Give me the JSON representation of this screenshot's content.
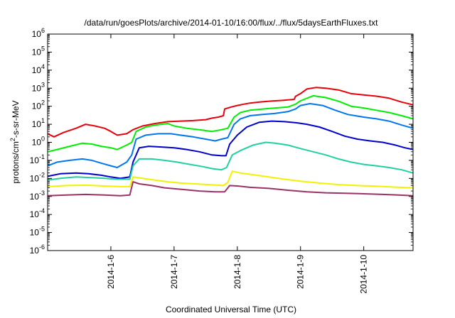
{
  "chart_data": {
    "type": "line",
    "title": "/data/run/goesPlots/archive/2014-01-10/16:00/flux/../flux/5daysEarthFluxes.txt",
    "xlabel": "Coordinated Universal Time (UTC)",
    "ylabel": {
      "pre": "protons/cm",
      "sup": "2",
      "post": "-s-sr-MeV"
    },
    "x_unit": "days since 2014-01-05 00:00 UTC",
    "xlim": [
      0.0,
      5.78
    ],
    "ylim_log10": [
      -6,
      6
    ],
    "y_scale": "log",
    "x_ticks": [
      {
        "x": 1,
        "label": "2014-1-6"
      },
      {
        "x": 2,
        "label": "2014-1-7"
      },
      {
        "x": 3,
        "label": "2014-1-8"
      },
      {
        "x": 4,
        "label": "2014-1-9"
      },
      {
        "x": 5,
        "label": "2014-1-10"
      }
    ],
    "y_ticks": [
      {
        "exp": -6,
        "label": "10",
        "sup": "-6"
      },
      {
        "exp": -5,
        "label": "10",
        "sup": "-5"
      },
      {
        "exp": -4,
        "label": "10",
        "sup": "-4"
      },
      {
        "exp": -3,
        "label": "10",
        "sup": "-3"
      },
      {
        "exp": -2,
        "label": "10",
        "sup": "-2"
      },
      {
        "exp": -1,
        "label": "10",
        "sup": "-1"
      },
      {
        "exp": 0,
        "label": "10",
        "sup": "0"
      },
      {
        "exp": 1,
        "label": "10",
        "sup": "1"
      },
      {
        "exp": 2,
        "label": "10",
        "sup": "2"
      },
      {
        "exp": 3,
        "label": "10",
        "sup": "3"
      },
      {
        "exp": 4,
        "label": "10",
        "sup": "4"
      },
      {
        "exp": 5,
        "label": "10",
        "sup": "5"
      },
      {
        "exp": 6,
        "label": "10",
        "sup": "6"
      }
    ],
    "grid": false,
    "legend": "none",
    "series": [
      {
        "color": "#e8000b",
        "points": [
          [
            0.0,
            3.0
          ],
          [
            0.1,
            2.0
          ],
          [
            0.25,
            3.5
          ],
          [
            0.45,
            6.0
          ],
          [
            0.6,
            10.0
          ],
          [
            0.75,
            8.0
          ],
          [
            0.9,
            6.0
          ],
          [
            1.0,
            4.0
          ],
          [
            1.1,
            2.5
          ],
          [
            1.25,
            3.0
          ],
          [
            1.35,
            5.0
          ],
          [
            1.5,
            8.0
          ],
          [
            1.7,
            11.0
          ],
          [
            1.9,
            14.0
          ],
          [
            2.1,
            15.0
          ],
          [
            2.3,
            16.0
          ],
          [
            2.5,
            18.0
          ],
          [
            2.6,
            22.0
          ],
          [
            2.7,
            25.0
          ],
          [
            2.78,
            30.0
          ],
          [
            2.8,
            70.0
          ],
          [
            2.9,
            90.0
          ],
          [
            3.0,
            110.0
          ],
          [
            3.1,
            130.0
          ],
          [
            3.2,
            150.0
          ],
          [
            3.35,
            170.0
          ],
          [
            3.5,
            190.0
          ],
          [
            3.7,
            210.0
          ],
          [
            3.9,
            240.0
          ],
          [
            3.92,
            350.0
          ],
          [
            4.0,
            500.0
          ],
          [
            4.1,
            900.0
          ],
          [
            4.25,
            1100.0
          ],
          [
            4.4,
            1000.0
          ],
          [
            4.6,
            800.0
          ],
          [
            4.8,
            500.0
          ],
          [
            5.0,
            420.0
          ],
          [
            5.2,
            360.0
          ],
          [
            5.4,
            280.0
          ],
          [
            5.6,
            170.0
          ],
          [
            5.78,
            120.0
          ]
        ]
      },
      {
        "color": "#00ee00",
        "points": [
          [
            0.0,
            0.3
          ],
          [
            0.15,
            0.4
          ],
          [
            0.35,
            0.6
          ],
          [
            0.55,
            0.9
          ],
          [
            0.7,
            0.8
          ],
          [
            0.85,
            0.6
          ],
          [
            1.0,
            0.5
          ],
          [
            1.1,
            0.4
          ],
          [
            1.25,
            0.7
          ],
          [
            1.33,
            1.0
          ],
          [
            1.4,
            4.0
          ],
          [
            1.55,
            7.0
          ],
          [
            1.7,
            9.0
          ],
          [
            1.9,
            11.0
          ],
          [
            2.0,
            8.0
          ],
          [
            2.2,
            6.0
          ],
          [
            2.4,
            5.0
          ],
          [
            2.6,
            4.0
          ],
          [
            2.75,
            5.0
          ],
          [
            2.85,
            6.0
          ],
          [
            2.95,
            25.0
          ],
          [
            3.05,
            45.0
          ],
          [
            3.2,
            60.0
          ],
          [
            3.4,
            70.0
          ],
          [
            3.6,
            80.0
          ],
          [
            3.8,
            90.0
          ],
          [
            3.92,
            130.0
          ],
          [
            4.0,
            200.0
          ],
          [
            4.2,
            380.0
          ],
          [
            4.4,
            300.0
          ],
          [
            4.6,
            190.0
          ],
          [
            4.8,
            100.0
          ],
          [
            5.0,
            80.0
          ],
          [
            5.2,
            60.0
          ],
          [
            5.4,
            45.0
          ],
          [
            5.6,
            30.0
          ],
          [
            5.78,
            20.0
          ]
        ]
      },
      {
        "color": "#0077ee",
        "points": [
          [
            0.0,
            0.05
          ],
          [
            0.15,
            0.08
          ],
          [
            0.35,
            0.1
          ],
          [
            0.55,
            0.12
          ],
          [
            0.7,
            0.1
          ],
          [
            0.85,
            0.07
          ],
          [
            1.0,
            0.05
          ],
          [
            1.1,
            0.04
          ],
          [
            1.25,
            0.08
          ],
          [
            1.33,
            0.2
          ],
          [
            1.4,
            1.5
          ],
          [
            1.55,
            2.5
          ],
          [
            1.75,
            3.0
          ],
          [
            1.95,
            3.0
          ],
          [
            2.1,
            2.5
          ],
          [
            2.3,
            2.0
          ],
          [
            2.5,
            1.5
          ],
          [
            2.65,
            1.2
          ],
          [
            2.75,
            1.5
          ],
          [
            2.85,
            1.8
          ],
          [
            2.95,
            10.0
          ],
          [
            3.05,
            20.0
          ],
          [
            3.2,
            30.0
          ],
          [
            3.4,
            35.0
          ],
          [
            3.6,
            40.0
          ],
          [
            3.8,
            50.0
          ],
          [
            3.92,
            70.0
          ],
          [
            4.0,
            110.0
          ],
          [
            4.15,
            140.0
          ],
          [
            4.35,
            110.0
          ],
          [
            4.55,
            60.0
          ],
          [
            4.75,
            35.0
          ],
          [
            5.0,
            25.0
          ],
          [
            5.2,
            20.0
          ],
          [
            5.4,
            15.0
          ],
          [
            5.6,
            9.0
          ],
          [
            5.78,
            6.0
          ]
        ]
      },
      {
        "color": "#0000cc",
        "points": [
          [
            0.0,
            0.013
          ],
          [
            0.2,
            0.018
          ],
          [
            0.45,
            0.02
          ],
          [
            0.65,
            0.018
          ],
          [
            0.85,
            0.015
          ],
          [
            1.0,
            0.012
          ],
          [
            1.15,
            0.01
          ],
          [
            1.3,
            0.012
          ],
          [
            1.35,
            0.08
          ],
          [
            1.45,
            0.5
          ],
          [
            1.6,
            0.6
          ],
          [
            1.8,
            0.55
          ],
          [
            2.0,
            0.5
          ],
          [
            2.2,
            0.4
          ],
          [
            2.4,
            0.3
          ],
          [
            2.6,
            0.2
          ],
          [
            2.75,
            0.18
          ],
          [
            2.82,
            0.18
          ],
          [
            2.88,
            0.8
          ],
          [
            3.0,
            2.5
          ],
          [
            3.15,
            7.0
          ],
          [
            3.35,
            13.0
          ],
          [
            3.55,
            15.0
          ],
          [
            3.75,
            14.0
          ],
          [
            3.95,
            12.0
          ],
          [
            4.1,
            10.0
          ],
          [
            4.3,
            7.0
          ],
          [
            4.5,
            4.0
          ],
          [
            4.7,
            2.2
          ],
          [
            4.9,
            1.5
          ],
          [
            5.1,
            1.2
          ],
          [
            5.3,
            1.0
          ],
          [
            5.5,
            0.7
          ],
          [
            5.65,
            0.5
          ],
          [
            5.78,
            0.4
          ]
        ]
      },
      {
        "color": "#20d0a0",
        "points": [
          [
            0.0,
            0.008
          ],
          [
            0.2,
            0.01
          ],
          [
            0.45,
            0.012
          ],
          [
            0.7,
            0.011
          ],
          [
            0.9,
            0.01
          ],
          [
            1.1,
            0.009
          ],
          [
            1.3,
            0.009
          ],
          [
            1.35,
            0.05
          ],
          [
            1.45,
            0.12
          ],
          [
            1.65,
            0.12
          ],
          [
            1.85,
            0.1
          ],
          [
            2.05,
            0.08
          ],
          [
            2.25,
            0.06
          ],
          [
            2.45,
            0.045
          ],
          [
            2.6,
            0.035
          ],
          [
            2.75,
            0.03
          ],
          [
            2.83,
            0.04
          ],
          [
            2.92,
            0.2
          ],
          [
            3.05,
            0.35
          ],
          [
            3.25,
            0.7
          ],
          [
            3.45,
            1.0
          ],
          [
            3.6,
            0.9
          ],
          [
            3.8,
            0.7
          ],
          [
            4.0,
            0.45
          ],
          [
            4.2,
            0.3
          ],
          [
            4.4,
            0.2
          ],
          [
            4.6,
            0.12
          ],
          [
            4.8,
            0.08
          ],
          [
            5.0,
            0.06
          ],
          [
            5.2,
            0.05
          ],
          [
            5.4,
            0.04
          ],
          [
            5.6,
            0.03
          ],
          [
            5.78,
            0.02
          ]
        ]
      },
      {
        "color": "#f2f200",
        "points": [
          [
            0.0,
            0.0035
          ],
          [
            0.3,
            0.004
          ],
          [
            0.6,
            0.0042
          ],
          [
            0.9,
            0.0038
          ],
          [
            1.15,
            0.0035
          ],
          [
            1.3,
            0.0035
          ],
          [
            1.35,
            0.012
          ],
          [
            1.5,
            0.01
          ],
          [
            1.7,
            0.008
          ],
          [
            1.9,
            0.0065
          ],
          [
            2.1,
            0.0055
          ],
          [
            2.4,
            0.0048
          ],
          [
            2.65,
            0.0043
          ],
          [
            2.78,
            0.004
          ],
          [
            2.85,
            0.006
          ],
          [
            2.92,
            0.025
          ],
          [
            3.05,
            0.02
          ],
          [
            3.25,
            0.016
          ],
          [
            3.5,
            0.012
          ],
          [
            3.75,
            0.009
          ],
          [
            4.0,
            0.007
          ],
          [
            4.3,
            0.0055
          ],
          [
            4.6,
            0.0045
          ],
          [
            4.9,
            0.004
          ],
          [
            5.2,
            0.0037
          ],
          [
            5.5,
            0.0033
          ],
          [
            5.78,
            0.003
          ]
        ]
      },
      {
        "color": "#993366",
        "points": [
          [
            0.0,
            0.0011
          ],
          [
            0.3,
            0.0012
          ],
          [
            0.6,
            0.0013
          ],
          [
            0.9,
            0.0012
          ],
          [
            1.15,
            0.0011
          ],
          [
            1.3,
            0.0012
          ],
          [
            1.35,
            0.0065
          ],
          [
            1.45,
            0.005
          ],
          [
            1.65,
            0.004
          ],
          [
            1.85,
            0.003
          ],
          [
            2.1,
            0.0025
          ],
          [
            2.4,
            0.002
          ],
          [
            2.65,
            0.0018
          ],
          [
            2.8,
            0.0018
          ],
          [
            2.88,
            0.004
          ],
          [
            3.0,
            0.0038
          ],
          [
            3.2,
            0.0032
          ],
          [
            3.5,
            0.0028
          ],
          [
            3.8,
            0.0022
          ],
          [
            4.1,
            0.0018
          ],
          [
            4.4,
            0.0016
          ],
          [
            4.7,
            0.0015
          ],
          [
            5.0,
            0.0014
          ],
          [
            5.3,
            0.0013
          ],
          [
            5.55,
            0.0012
          ],
          [
            5.78,
            0.0011
          ]
        ]
      }
    ]
  }
}
